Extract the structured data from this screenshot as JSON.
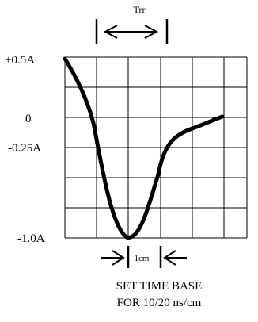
{
  "y_labels": {
    "top": "+0.5A",
    "zero": "0",
    "neg_quarter": "-0.25A",
    "bottom": "-1.0A"
  },
  "top_marker": {
    "label": "Trr"
  },
  "bottom_marker": {
    "label": "1cm"
  },
  "caption": {
    "line1": "SET TIME BASE",
    "line2": "FOR 10/20 ns/cm"
  },
  "colors": {
    "ink": "#000000",
    "background": "#ffffff"
  }
}
